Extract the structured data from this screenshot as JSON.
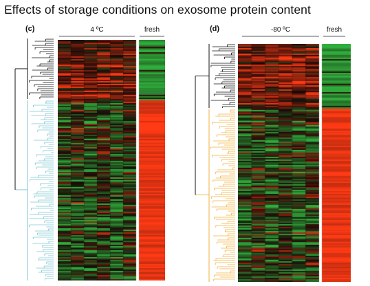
{
  "title": "Effects of storage conditions on exosome protein content",
  "panels": [
    {
      "label": "(c)",
      "storage_label": "4 ºC",
      "fresh_label": "fresh",
      "heatmap_name": "heatmap-4c",
      "dendro_color": "#7ec6d2",
      "top_cluster_fresh": "green"
    },
    {
      "label": "(d)",
      "storage_label": "-80 ºC",
      "fresh_label": "fresh",
      "heatmap_name": "heatmap-80c",
      "dendro_color": "#f2b13c",
      "top_cluster_fresh": "green"
    }
  ],
  "colors": {
    "up": "#ff3a14",
    "down": "#2fae3c",
    "neutral": "#1a0b08",
    "dendro_top": "#111111"
  }
}
